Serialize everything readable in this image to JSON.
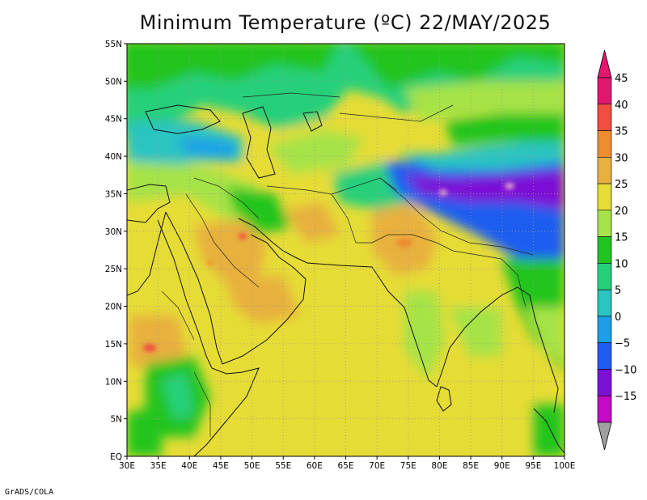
{
  "title": "Minimum Temperature (ºC) 22/MAY/2025",
  "credit": "GrADS/COLA",
  "map": {
    "lon_range": [
      30,
      100
    ],
    "lat_range": [
      0,
      55
    ],
    "grid": "dotted",
    "x_ticks": [
      "30E",
      "35E",
      "40E",
      "45E",
      "50E",
      "55E",
      "60E",
      "65E",
      "70E",
      "75E",
      "80E",
      "85E",
      "90E",
      "95E",
      "100E"
    ],
    "y_ticks": [
      "EQ",
      "5N",
      "10N",
      "15N",
      "20N",
      "25N",
      "30N",
      "35N",
      "40N",
      "45N",
      "50N",
      "55N"
    ]
  },
  "colorbar": {
    "position": "right",
    "labels": [
      "45",
      "40",
      "35",
      "30",
      "25",
      "20",
      "15",
      "10",
      "5",
      "0",
      "−5",
      "−10",
      "−15"
    ],
    "colors": [
      "#e2186e",
      "#f04e3f",
      "#ef8c2d",
      "#e8b03e",
      "#e6dc36",
      "#a6e347",
      "#20c51f",
      "#25d07a",
      "#2ac4c1",
      "#1a9fe8",
      "#1e5df0",
      "#7c11d6",
      "#c40ac6"
    ],
    "over_color": "#e2186e",
    "under_color": "#a0a0a0"
  }
}
